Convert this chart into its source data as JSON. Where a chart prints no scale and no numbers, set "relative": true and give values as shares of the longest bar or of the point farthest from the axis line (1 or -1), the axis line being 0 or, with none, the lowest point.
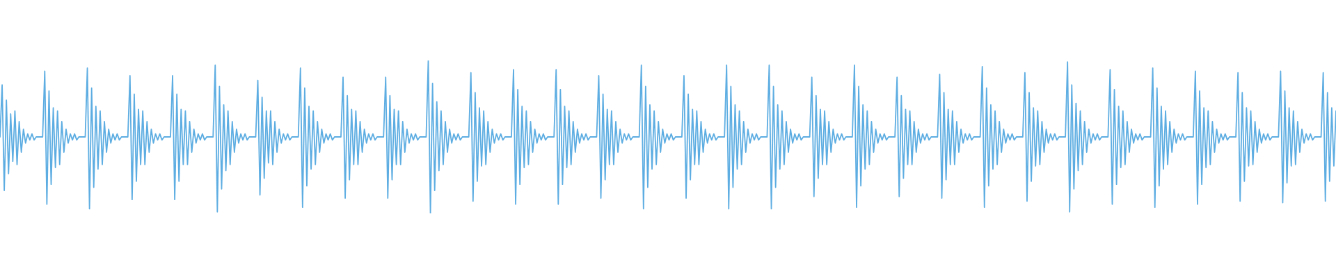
{
  "chart_data": {
    "type": "line",
    "relative": true,
    "categories": [
      null,
      null,
      null,
      null,
      null,
      null,
      null,
      null,
      null,
      null,
      null,
      null,
      null,
      null,
      null,
      null,
      null,
      null,
      null,
      null,
      null,
      null,
      null,
      null,
      null,
      null,
      null,
      null,
      null,
      null,
      null,
      null,
      null,
      null,
      null,
      null,
      null,
      null,
      null,
      null,
      null,
      null,
      null,
      null,
      null,
      null,
      null,
      null,
      null,
      null,
      null,
      null,
      null,
      null,
      null,
      null,
      null,
      null,
      null,
      null,
      null,
      null,
      null,
      null,
      null,
      null,
      null,
      null,
      null,
      null,
      null,
      null,
      null,
      null,
      null,
      null,
      null,
      null,
      null,
      null,
      null,
      null,
      null,
      null,
      null,
      null,
      null,
      null,
      null,
      null,
      null,
      null,
      null,
      null,
      null,
      null,
      null,
      null,
      null,
      null,
      null,
      null,
      null,
      null,
      null,
      null,
      null,
      null,
      null,
      null,
      null,
      null,
      null,
      null,
      null,
      null,
      null,
      null,
      null,
      null,
      null,
      null,
      null,
      null,
      null,
      null,
      null,
      null,
      null,
      null,
      null,
      null,
      null,
      null,
      null,
      null,
      null,
      null,
      null,
      null,
      null,
      null,
      null,
      null,
      null,
      null,
      null,
      null,
      null,
      null,
      null,
      null,
      null,
      null,
      null,
      null,
      null,
      null,
      null,
      null,
      null,
      null,
      null,
      null,
      null,
      null,
      null,
      null,
      null,
      null,
      null,
      null,
      null,
      null,
      null,
      null,
      null,
      null,
      null,
      null,
      null,
      null,
      null,
      null,
      null,
      null,
      null,
      null,
      null,
      null,
      null,
      null,
      null,
      null,
      null,
      null,
      null,
      null,
      null,
      null,
      null,
      null,
      null,
      null,
      null,
      null,
      null,
      null,
      null,
      null,
      null,
      null,
      null,
      null,
      null,
      null,
      null,
      null,
      null,
      null,
      null,
      null,
      null,
      null,
      null,
      null,
      null,
      null,
      null,
      null,
      null,
      null,
      null,
      null,
      null,
      null,
      null,
      null,
      null,
      null,
      null,
      null,
      null,
      null,
      null,
      null,
      null,
      null,
      null,
      null,
      null,
      null,
      null,
      null,
      null,
      null,
      null,
      null,
      null,
      null,
      null,
      null,
      null,
      null,
      null,
      null,
      null,
      null,
      null,
      null,
      null,
      null,
      null,
      null,
      null,
      null,
      null,
      null,
      null,
      null,
      null,
      null,
      null,
      null,
      null,
      null,
      null,
      null,
      null,
      null,
      null,
      null,
      null,
      null,
      null,
      null,
      null,
      null,
      null,
      null,
      null,
      null,
      null,
      null,
      null,
      null,
      null,
      null,
      null,
      null,
      null,
      null,
      null,
      null,
      null,
      null,
      null,
      null,
      null,
      null,
      null,
      null,
      null,
      null,
      null,
      null,
      null,
      null,
      null,
      null,
      null,
      null,
      null,
      null,
      null,
      null,
      null,
      null,
      null,
      null,
      null,
      null,
      null,
      null,
      null,
      null,
      null,
      null,
      null,
      null,
      null,
      null,
      null,
      null,
      null,
      null,
      null,
      null,
      null,
      null,
      null,
      null,
      null,
      null,
      null,
      null,
      null,
      null,
      null,
      null,
      null,
      null,
      null,
      null,
      null,
      null,
      null,
      null,
      null,
      null,
      null,
      null,
      null,
      null,
      null,
      null,
      null,
      null,
      null,
      null,
      null,
      null,
      null,
      null,
      null,
      null,
      null,
      null,
      null,
      null,
      null,
      null,
      null,
      null,
      null,
      null,
      null,
      null,
      null,
      null,
      null,
      null,
      null,
      null,
      null,
      null,
      null,
      null,
      null,
      null,
      null,
      null,
      null,
      null,
      null,
      null,
      null,
      null,
      null,
      null,
      null,
      null,
      null,
      null,
      null,
      null,
      null,
      null,
      null,
      null,
      null,
      null,
      null,
      null,
      null,
      null,
      null,
      null,
      null,
      null,
      null,
      null,
      null,
      null,
      null,
      null,
      null,
      null,
      null,
      null,
      null,
      null,
      null,
      null,
      null,
      null,
      null,
      null,
      null,
      null,
      null,
      null,
      null,
      null,
      null,
      null,
      null,
      null,
      null,
      null,
      null,
      null,
      null,
      null,
      null,
      null,
      null,
      null,
      null,
      null,
      null,
      null,
      null,
      null,
      null,
      null,
      null,
      null,
      null,
      null,
      null,
      null,
      null,
      null,
      null,
      null,
      null,
      null,
      null,
      null,
      null,
      null,
      null,
      null,
      null,
      null,
      null,
      null,
      null,
      null,
      null,
      null,
      null,
      null,
      null,
      null,
      null,
      null,
      null,
      null,
      null,
      null,
      null,
      null,
      null,
      null,
      null,
      null,
      null,
      null,
      null,
      null,
      null,
      null,
      null,
      null,
      null,
      null,
      null,
      null,
      null,
      null,
      null,
      null,
      null,
      null,
      null,
      null,
      null,
      null,
      null,
      null,
      null,
      null,
      null,
      null,
      null,
      null,
      null,
      null,
      null,
      null,
      null,
      null,
      null,
      null,
      null,
      null,
      null,
      null,
      null,
      null,
      null,
      null,
      null,
      null,
      null,
      null,
      null,
      null,
      null,
      null,
      null,
      null,
      null,
      null,
      null,
      null,
      null,
      null,
      null,
      null,
      null,
      null,
      null,
      null,
      null,
      null,
      null,
      null,
      null,
      null,
      null,
      null,
      null,
      null,
      null,
      null,
      null,
      null,
      null,
      null,
      null,
      null,
      null,
      null,
      null,
      null
    ],
    "series": [
      {
        "color": "#5dade2",
        "values": [
          0.5,
          0.84,
          0.15,
          0.74,
          0.26,
          0.65,
          0.34,
          0.67,
          0.32,
          0.6,
          0.4,
          0.55,
          0.46,
          0.52,
          0.48,
          0.52,
          0.48,
          0.5,
          0.5,
          0.5,
          0.5,
          0.93,
          0.06,
          0.8,
          0.19,
          0.69,
          0.3,
          0.67,
          0.32,
          0.6,
          0.4,
          0.55,
          0.46,
          0.52,
          0.48,
          0.52,
          0.48,
          0.5,
          0.5,
          0.5,
          0.5,
          0.95,
          0.03,
          0.82,
          0.17,
          0.7,
          0.29,
          0.67,
          0.32,
          0.6,
          0.4,
          0.55,
          0.46,
          0.52,
          0.48,
          0.52,
          0.48,
          0.5,
          0.5,
          0.5,
          0.5,
          0.9,
          0.09,
          0.78,
          0.21,
          0.68,
          0.32,
          0.67,
          0.32,
          0.6,
          0.4,
          0.55,
          0.46,
          0.52,
          0.48,
          0.52,
          0.48,
          0.5,
          0.5,
          0.5,
          0.5,
          0.9,
          0.09,
          0.78,
          0.21,
          0.68,
          0.32,
          0.67,
          0.32,
          0.6,
          0.4,
          0.55,
          0.46,
          0.52,
          0.48,
          0.52,
          0.48,
          0.5,
          0.5,
          0.5,
          0.5,
          0.97,
          0.01,
          0.83,
          0.16,
          0.71,
          0.28,
          0.67,
          0.32,
          0.6,
          0.4,
          0.55,
          0.46,
          0.52,
          0.48,
          0.52,
          0.48,
          0.5,
          0.5,
          0.5,
          0.5,
          0.87,
          0.12,
          0.76,
          0.23,
          0.67,
          0.33,
          0.67,
          0.32,
          0.6,
          0.4,
          0.55,
          0.46,
          0.52,
          0.48,
          0.52,
          0.48,
          0.5,
          0.5,
          0.5,
          0.5,
          0.95,
          0.04,
          0.82,
          0.18,
          0.7,
          0.29,
          0.67,
          0.32,
          0.6,
          0.4,
          0.55,
          0.46,
          0.52,
          0.48,
          0.52,
          0.48,
          0.5,
          0.5,
          0.5,
          0.5,
          0.89,
          0.1,
          0.77,
          0.22,
          0.68,
          0.32,
          0.67,
          0.32,
          0.6,
          0.4,
          0.55,
          0.46,
          0.52,
          0.48,
          0.52,
          0.48,
          0.5,
          0.5,
          0.5,
          0.5,
          0.89,
          0.1,
          0.77,
          0.22,
          0.68,
          0.32,
          0.67,
          0.32,
          0.6,
          0.4,
          0.55,
          0.46,
          0.52,
          0.48,
          0.52,
          0.48,
          0.5,
          0.5,
          0.5,
          0.5,
          1.0,
          0.0,
          0.85,
          0.15,
          0.73,
          0.28,
          0.67,
          0.32,
          0.6,
          0.4,
          0.55,
          0.46,
          0.52,
          0.48,
          0.52,
          0.48,
          0.5,
          0.5,
          0.5,
          0.5,
          0.92,
          0.08,
          0.79,
          0.21,
          0.69,
          0.31,
          0.67,
          0.32,
          0.6,
          0.4,
          0.55,
          0.46,
          0.52,
          0.48,
          0.52,
          0.48,
          0.5,
          0.5,
          0.5,
          0.5,
          0.94,
          0.06,
          0.81,
          0.19,
          0.7,
          0.3,
          0.67,
          0.32,
          0.6,
          0.4,
          0.55,
          0.46,
          0.52,
          0.48,
          0.52,
          0.48,
          0.5,
          0.5,
          0.5,
          0.5,
          0.94,
          0.06,
          0.81,
          0.19,
          0.7,
          0.3,
          0.67,
          0.32,
          0.6,
          0.4,
          0.55,
          0.46,
          0.52,
          0.48,
          0.52,
          0.48,
          0.5,
          0.5,
          0.5,
          0.5,
          0.9,
          0.1,
          0.78,
          0.22,
          0.68,
          0.32,
          0.67,
          0.32,
          0.6,
          0.4,
          0.55,
          0.46,
          0.52,
          0.48,
          0.52,
          0.48,
          0.5,
          0.5,
          0.5,
          0.5,
          0.97,
          0.03,
          0.83,
          0.17,
          0.71,
          0.29,
          0.67,
          0.32,
          0.6,
          0.4,
          0.55,
          0.46,
          0.52,
          0.48,
          0.52,
          0.48,
          0.5,
          0.5,
          0.5,
          0.5,
          0.9,
          0.1,
          0.78,
          0.22,
          0.68,
          0.32,
          0.67,
          0.32,
          0.6,
          0.4,
          0.55,
          0.46,
          0.52,
          0.48,
          0.52,
          0.48,
          0.5,
          0.5,
          0.5,
          0.5,
          0.97,
          0.03,
          0.83,
          0.17,
          0.71,
          0.29,
          0.67,
          0.32,
          0.6,
          0.4,
          0.55,
          0.46,
          0.52,
          0.48,
          0.52,
          0.48,
          0.5,
          0.5,
          0.5,
          0.5,
          0.97,
          0.03,
          0.83,
          0.17,
          0.71,
          0.29,
          0.67,
          0.32,
          0.6,
          0.4,
          0.55,
          0.46,
          0.52,
          0.48,
          0.52,
          0.48,
          0.5,
          0.5,
          0.5,
          0.5,
          0.89,
          0.11,
          0.77,
          0.23,
          0.68,
          0.32,
          0.67,
          0.32,
          0.6,
          0.4,
          0.55,
          0.46,
          0.52,
          0.48,
          0.52,
          0.48,
          0.5,
          0.5,
          0.5,
          0.5,
          0.97,
          0.04,
          0.83,
          0.18,
          0.71,
          0.29,
          0.67,
          0.32,
          0.6,
          0.4,
          0.55,
          0.46,
          0.52,
          0.48,
          0.52,
          0.48,
          0.5,
          0.5,
          0.5,
          0.5,
          0.89,
          0.11,
          0.77,
          0.23,
          0.68,
          0.32,
          0.67,
          0.32,
          0.6,
          0.4,
          0.55,
          0.46,
          0.52,
          0.48,
          0.52,
          0.48,
          0.5,
          0.5,
          0.5,
          0.5,
          0.91,
          0.1,
          0.79,
          0.22,
          0.68,
          0.32,
          0.67,
          0.32,
          0.6,
          0.4,
          0.55,
          0.46,
          0.52,
          0.48,
          0.52,
          0.48,
          0.5,
          0.5,
          0.5,
          0.5,
          0.96,
          0.04,
          0.82,
          0.18,
          0.71,
          0.29,
          0.67,
          0.32,
          0.6,
          0.4,
          0.55,
          0.46,
          0.52,
          0.48,
          0.52,
          0.48,
          0.5,
          0.5,
          0.5,
          0.5,
          0.92,
          0.08,
          0.79,
          0.21,
          0.69,
          0.31,
          0.67,
          0.32,
          0.6,
          0.4,
          0.55,
          0.46,
          0.52,
          0.48,
          0.52,
          0.48,
          0.5,
          0.5,
          0.5,
          0.5,
          0.99,
          0.01,
          0.84,
          0.16,
          0.72,
          0.28,
          0.67,
          0.32,
          0.6,
          0.4,
          0.55,
          0.46,
          0.52,
          0.48,
          0.52,
          0.48,
          0.5,
          0.5,
          0.5,
          0.5,
          0.94,
          0.06,
          0.81,
          0.19,
          0.7,
          0.3,
          0.67,
          0.32,
          0.6,
          0.4,
          0.55,
          0.46,
          0.52,
          0.48,
          0.52,
          0.48,
          0.5,
          0.5,
          0.5,
          0.5,
          0.95,
          0.04,
          0.82,
          0.18,
          0.7,
          0.29,
          0.67,
          0.32,
          0.6,
          0.4,
          0.55,
          0.46,
          0.52,
          0.48,
          0.52,
          0.48,
          0.5,
          0.5,
          0.5,
          0.5,
          0.93,
          0.06,
          0.8,
          0.19,
          0.69,
          0.3,
          0.67,
          0.32,
          0.6,
          0.4,
          0.55,
          0.46,
          0.52,
          0.48,
          0.52,
          0.48,
          0.5,
          0.5,
          0.5,
          0.5,
          0.92,
          0.08,
          0.79,
          0.21,
          0.69,
          0.31,
          0.67,
          0.32,
          0.6,
          0.4,
          0.55,
          0.46,
          0.52,
          0.48,
          0.52,
          0.48,
          0.5,
          0.5,
          0.5,
          0.5,
          0.93,
          0.07,
          0.8,
          0.2,
          0.69,
          0.31,
          0.67,
          0.32,
          0.6,
          0.4,
          0.55,
          0.46,
          0.52,
          0.48,
          0.52,
          0.48,
          0.5,
          0.5,
          0.5,
          0.5,
          0.92,
          0.08,
          0.79,
          0.21,
          0.69,
          0.31,
          0.67
        ]
      }
    ]
  }
}
